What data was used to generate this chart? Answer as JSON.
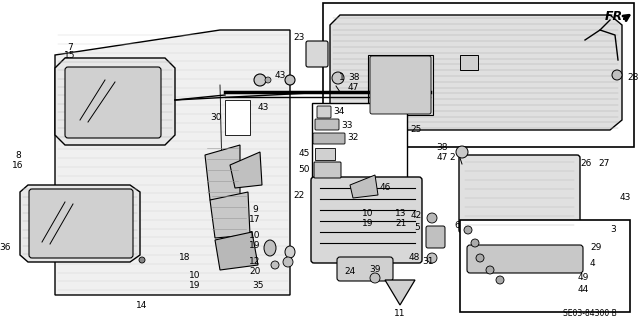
{
  "bg_color": "#ffffff",
  "diagram_code": "SE03-84300 B",
  "fr_label": "Fr.",
  "figsize": [
    6.4,
    3.19
  ],
  "dpi": 100,
  "image_b64": ""
}
